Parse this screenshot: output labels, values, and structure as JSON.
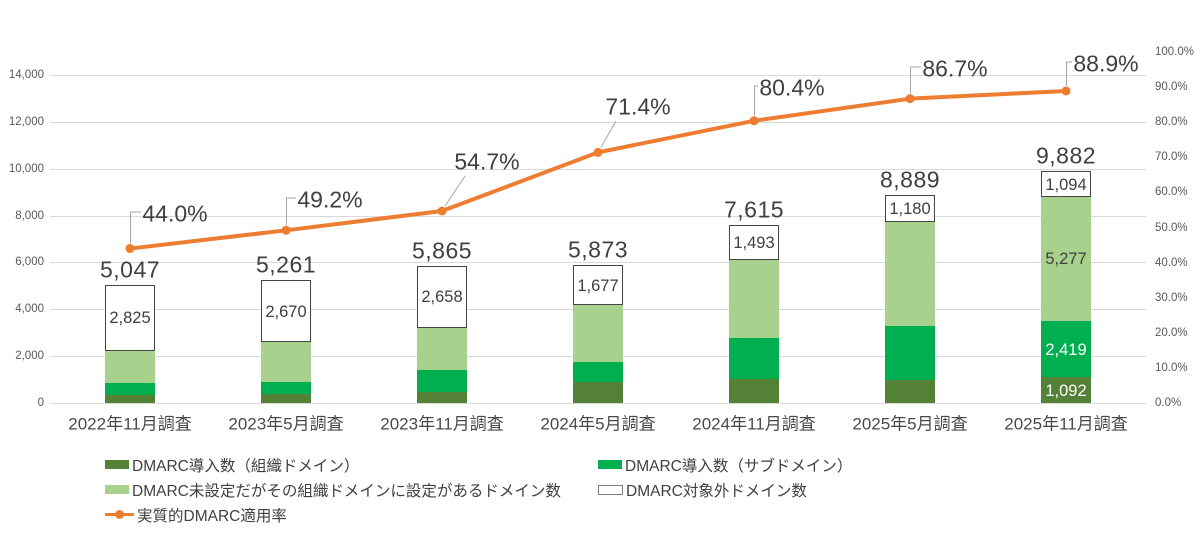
{
  "chart_data": {
    "type": "bar",
    "subtype": "stacked-bars-with-percentage-line",
    "title": "",
    "categories": [
      "2022年11月調査",
      "2023年5月調査",
      "2023年11月調査",
      "2024年5月調査",
      "2024年11月調査",
      "2025年5月調査",
      "2025年11月調査"
    ],
    "series": [
      {
        "name": "DMARC導入数（組織ドメイン）",
        "color": "#538135",
        "values": [
          340,
          380,
          470,
          910,
          1025,
          985,
          1092
        ]
      },
      {
        "name": "DMARC導入数（サブドメイン）",
        "color": "#00B050",
        "values": [
          510,
          520,
          940,
          855,
          1750,
          2305,
          2419
        ]
      },
      {
        "name": "DMARC未設定だがその組織ドメインに設定があるドメイン数",
        "color": "#A9D18E",
        "values": [
          1372,
          1691,
          1797,
          2431,
          3347,
          4419,
          5277
        ]
      },
      {
        "name": "DMARC対象外ドメイン数",
        "color": "#FFFFFF",
        "border_color": "#454545",
        "values": [
          2825,
          2670,
          2658,
          1677,
          1493,
          1180,
          1094
        ]
      }
    ],
    "visible_segment_labels": {
      "excluded_series_all_bars": [
        "2,825",
        "2,670",
        "2,658",
        "1,677",
        "1,493",
        "1,180",
        "1,094"
      ],
      "last_bar_only": [
        "1,092",
        "2,419",
        "5,277"
      ]
    },
    "totals": [
      5047,
      5261,
      5865,
      5873,
      7615,
      8889,
      9882
    ],
    "total_labels": [
      "5,047",
      "5,261",
      "5,865",
      "5,873",
      "7,615",
      "8,889",
      "9,882"
    ],
    "line_series": {
      "name": "実質的DMARC適用率",
      "color": "#ED7D31",
      "values": [
        44.0,
        49.2,
        54.7,
        71.4,
        80.4,
        86.7,
        88.9
      ],
      "labels": [
        "44.0%",
        "49.2%",
        "54.7%",
        "71.4%",
        "80.4%",
        "86.7%",
        "88.9%"
      ]
    },
    "left_axis": {
      "min": 0,
      "max": 14000,
      "step": 2000,
      "tick_labels": [
        "0",
        "2,000",
        "4,000",
        "6,000",
        "8,000",
        "10,000",
        "12,000",
        "14,000"
      ]
    },
    "right_axis": {
      "min": 0,
      "max": 100,
      "step": 10,
      "tick_labels": [
        "0.0%",
        "10.0%",
        "20.0%",
        "30.0%",
        "40.0%",
        "50.0%",
        "60.0%",
        "70.0%",
        "80.0%",
        "90.0%",
        "100.0%"
      ]
    },
    "grid": true,
    "gridline_color": "#d9d9d9",
    "legend_position": "bottom-left"
  },
  "legend": {
    "items": [
      {
        "label": "DMARC導入数（組織ドメイン）",
        "swatch": "dark-green-bar",
        "color": "#538135"
      },
      {
        "label": "DMARC導入数（サブドメイン）",
        "swatch": "green-bar",
        "color": "#00B050"
      },
      {
        "label": "DMARC未設定だがその組織ドメインに設定があるドメイン数",
        "swatch": "light-green-bar",
        "color": "#A9D18E"
      },
      {
        "label": "DMARC対象外ドメイン数",
        "swatch": "white-outline-bar",
        "color": "#FFFFFF"
      },
      {
        "label": "実質的DMARC適用率",
        "swatch": "orange-line-marker",
        "color": "#ED7D31"
      }
    ]
  },
  "colors": {
    "accent_orange": "#ED7D31",
    "dark_green": "#538135",
    "green": "#00B050",
    "light_green": "#A9D18E",
    "label_text": "#404040",
    "axis_text": "#595959",
    "leader_line": "#a6a6a6"
  }
}
